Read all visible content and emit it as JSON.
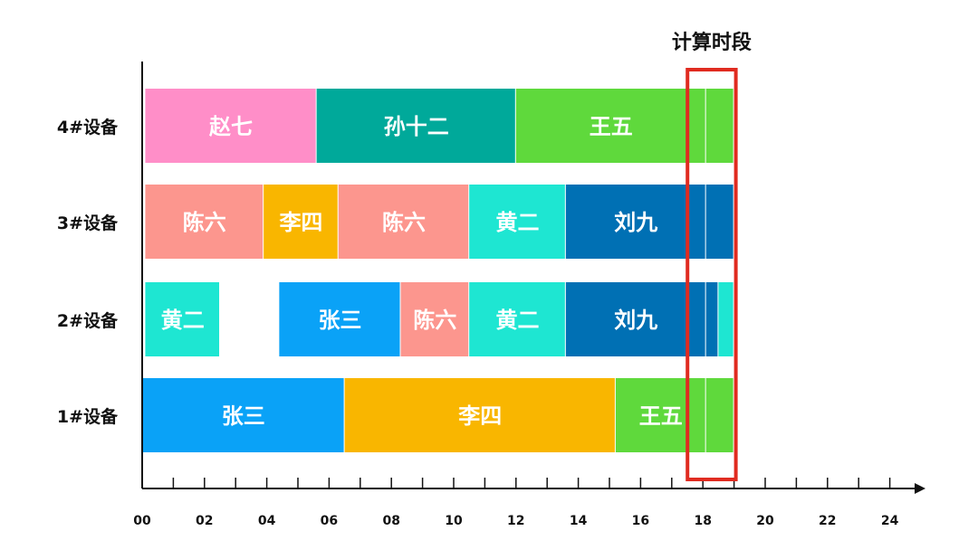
{
  "chart_data": {
    "type": "gantt",
    "xlim": [
      0,
      24
    ],
    "x_ticks": [
      "00",
      "02",
      "04",
      "06",
      "08",
      "10",
      "12",
      "14",
      "16",
      "18",
      "20",
      "22",
      "24"
    ],
    "highlight": {
      "label": "计算时段",
      "start": 18,
      "end": 19
    },
    "rows": [
      {
        "label": "4#设备",
        "segments": [
          {
            "name": "赵七",
            "start": 0.1,
            "end": 5.6,
            "color": "#ff8ec8"
          },
          {
            "name": "孙十二",
            "start": 5.6,
            "end": 12.0,
            "color": "#00a99a"
          },
          {
            "name": "王五",
            "start": 12.0,
            "end": 18.1,
            "color": "#5fd93c"
          },
          {
            "name": "",
            "start": 18.1,
            "end": 19.0,
            "color": "#5fd93c"
          }
        ]
      },
      {
        "label": "3#设备",
        "segments": [
          {
            "name": "陈六",
            "start": 0.1,
            "end": 3.9,
            "color": "#fc968e"
          },
          {
            "name": "李四",
            "start": 3.9,
            "end": 6.3,
            "color": "#f9b600"
          },
          {
            "name": "陈六",
            "start": 6.3,
            "end": 10.5,
            "color": "#fc968e"
          },
          {
            "name": "黄二",
            "start": 10.5,
            "end": 13.6,
            "color": "#1ee6d2"
          },
          {
            "name": "刘九",
            "start": 13.6,
            "end": 18.1,
            "color": "#0070b4"
          },
          {
            "name": "",
            "start": 18.1,
            "end": 19.0,
            "color": "#0070b4"
          }
        ]
      },
      {
        "label": "2#设备",
        "segments": [
          {
            "name": "黄二",
            "start": 0.1,
            "end": 2.5,
            "color": "#1ee6d2"
          },
          {
            "name": "张三",
            "start": 4.4,
            "end": 8.3,
            "color": "#0aa2f7"
          },
          {
            "name": "陈六",
            "start": 8.3,
            "end": 10.5,
            "color": "#fc968e"
          },
          {
            "name": "黄二",
            "start": 10.5,
            "end": 13.6,
            "color": "#1ee6d2"
          },
          {
            "name": "刘九",
            "start": 13.6,
            "end": 18.1,
            "color": "#0070b4"
          },
          {
            "name": "",
            "start": 18.1,
            "end": 18.5,
            "color": "#0070b4"
          },
          {
            "name": "",
            "start": 18.5,
            "end": 19.0,
            "color": "#1ee6d2"
          }
        ]
      },
      {
        "label": "1#设备",
        "segments": [
          {
            "name": "张三",
            "start": 0.0,
            "end": 6.5,
            "color": "#0aa2f7"
          },
          {
            "name": "李四",
            "start": 6.5,
            "end": 15.2,
            "color": "#f9b600"
          },
          {
            "name": "王五",
            "start": 15.2,
            "end": 18.1,
            "color": "#5fd93c"
          },
          {
            "name": "",
            "start": 18.1,
            "end": 19.0,
            "color": "#5fd93c"
          }
        ]
      }
    ]
  }
}
